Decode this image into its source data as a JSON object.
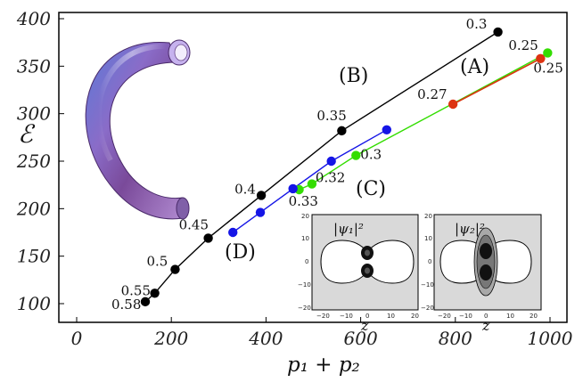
{
  "chart_data": {
    "type": "line",
    "xlabel": "p₁ + p₂",
    "ylabel": "ℰ",
    "xlim": [
      -50,
      1010
    ],
    "ylim": [
      90,
      405
    ],
    "xticks": [
      "0",
      "200",
      "400",
      "600",
      "800",
      "1000"
    ],
    "yticks": [
      "100",
      "150",
      "200",
      "250",
      "300",
      "350",
      "400"
    ],
    "xtick_values": [
      0,
      200,
      400,
      600,
      800,
      1000
    ],
    "ytick_values": [
      100,
      150,
      200,
      250,
      300,
      350,
      400
    ],
    "series": [
      {
        "name": "(B)",
        "color": "#000000",
        "x": [
          145,
          165,
          208,
          278,
          390,
          560,
          890
        ],
        "y": [
          102,
          111,
          136,
          169,
          214,
          282,
          386
        ],
        "labels": [
          "0.58",
          "0.55",
          "0.5",
          "0.45",
          "0.4",
          "0.35",
          "0.3"
        ]
      },
      {
        "name": "(A)",
        "color": "#dd3311",
        "x": [
          795,
          980
        ],
        "y": [
          310,
          358
        ],
        "labels": [
          "0.27",
          "0.25"
        ]
      },
      {
        "name": "(C)",
        "color": "#33dd00",
        "x": [
          470,
          497,
          590,
          995
        ],
        "y": [
          220,
          226,
          256,
          364
        ],
        "labels": [
          "0.33",
          "0.32",
          "0.3",
          "0.25"
        ]
      },
      {
        "name": "(D)",
        "color": "#1515e6",
        "x": [
          330,
          388,
          457,
          538,
          655
        ],
        "y": [
          175,
          196,
          221,
          250,
          283
        ],
        "labels": []
      }
    ],
    "insets": [
      {
        "title": "|ψ₁|²",
        "xlabel": "z",
        "xticks": [
          "−20",
          "−10",
          "0",
          "10",
          "20"
        ],
        "yticks": [
          "20",
          "10",
          "0",
          "−10",
          "−20"
        ]
      },
      {
        "title": "|ψ₂|²",
        "xlabel": "z",
        "xticks": [
          "−20",
          "−10",
          "0",
          "10",
          "20"
        ],
        "yticks": [
          "20",
          "10",
          "0",
          "−10",
          "−20"
        ]
      }
    ]
  }
}
